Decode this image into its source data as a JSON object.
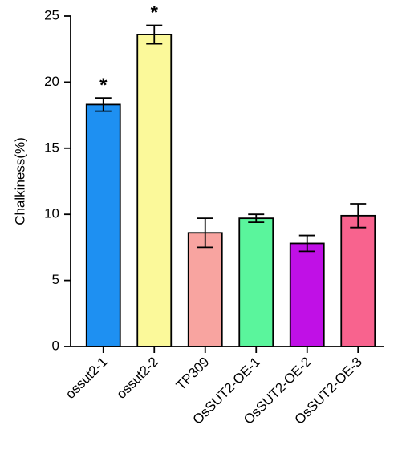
{
  "chart_data": {
    "type": "bar",
    "y_label": "Chalkiness(%)",
    "categories": [
      "ossut2-1",
      "ossut2-2",
      "TP309",
      "OsSUT2-OE-1",
      "OsSUT2-OE-2",
      "OsSUT2-OE-3"
    ],
    "series": [
      {
        "colors": [
          "#1e90f2",
          "#fbf99a",
          "#f8a4a0",
          "#5af59c",
          "#c010e6",
          "#f8638e"
        ],
        "values": [
          18.3,
          23.6,
          8.6,
          9.7,
          7.8,
          9.9
        ],
        "errors": [
          0.5,
          0.7,
          1.1,
          0.3,
          0.6,
          0.9
        ]
      }
    ],
    "significance": [
      "*",
      "*",
      null,
      null,
      null,
      null
    ],
    "ylim": [
      0,
      25
    ],
    "yticks": [
      0,
      5,
      10,
      15,
      20,
      25
    ]
  }
}
